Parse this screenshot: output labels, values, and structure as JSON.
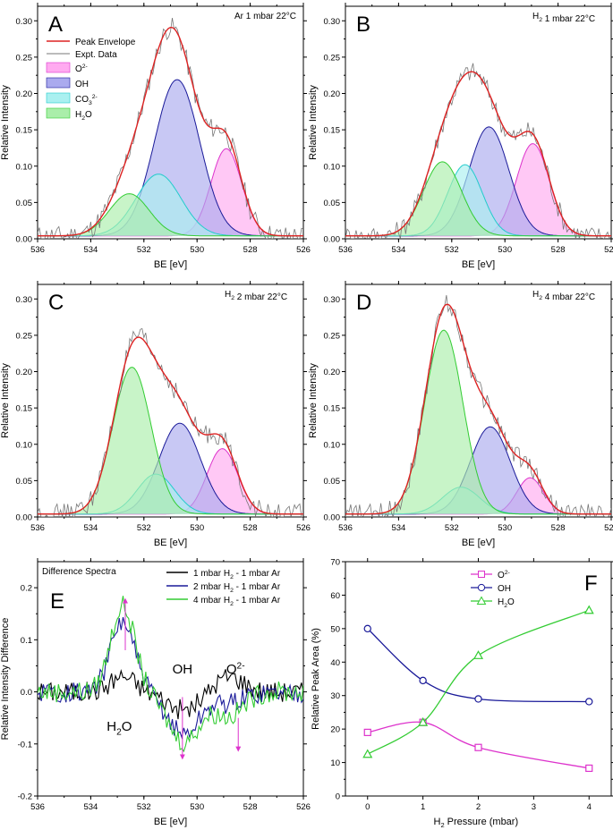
{
  "colors": {
    "envelope": "#dd2222",
    "expt": "#777777",
    "o2": "#dd33cc",
    "o2_fill": "#ffaaf0",
    "oh": "#1a1a99",
    "oh_fill": "#aaaaee",
    "co3": "#22cccc",
    "co3_fill": "#aaf0f0",
    "h2o": "#33cc33",
    "h2o_fill": "#aaeeaa",
    "diff1": "#000000",
    "diff2": "#1a1a99",
    "diff4": "#33cc33",
    "arrow": "#dd33cc"
  },
  "panels": [
    {
      "letter": "A",
      "condition": "Ar 1 mbar 22°C",
      "chart_data": {
        "type": "line",
        "title": "Ar 1 mbar 22°C",
        "xlabel": "BE [eV]",
        "ylabel": "Relative Intensity",
        "xlim": [
          536,
          526
        ],
        "ylim": [
          0,
          0.32
        ],
        "xticks": [
          "536",
          "534",
          "532",
          "530",
          "528",
          "526"
        ],
        "yticks": [
          "0.00",
          "0.05",
          "0.10",
          "0.15",
          "0.20",
          "0.25",
          "0.30"
        ],
        "components": [
          {
            "name": "O2-",
            "center": 528.9,
            "height": 0.12,
            "width": 0.58
          },
          {
            "name": "OH",
            "center": 530.75,
            "height": 0.215,
            "width": 0.85
          },
          {
            "name": "CO3 2-",
            "center": 531.45,
            "height": 0.085,
            "width": 0.85
          },
          {
            "name": "H2O",
            "center": 532.55,
            "height": 0.058,
            "width": 0.75
          }
        ],
        "baseline": 0.004
      }
    },
    {
      "letter": "B",
      "condition_prefix": "H",
      "condition_sub": "2",
      "condition_suffix": " 1 mbar 22°C",
      "chart_data": {
        "type": "line",
        "title": "H2 1 mbar 22°C",
        "xlabel": "BE [eV]",
        "ylabel": "Relative Intensity",
        "xlim": [
          536,
          526
        ],
        "ylim": [
          0,
          0.32
        ],
        "xticks": [
          "536",
          "534",
          "532",
          "530",
          "528",
          "526"
        ],
        "yticks": [
          "0.00",
          "0.05",
          "0.10",
          "0.15",
          "0.20",
          "0.25",
          "0.30"
        ],
        "components": [
          {
            "name": "O2-",
            "center": 528.95,
            "height": 0.127,
            "width": 0.62
          },
          {
            "name": "OH",
            "center": 530.6,
            "height": 0.15,
            "width": 0.75
          },
          {
            "name": "CO3 2-",
            "center": 531.5,
            "height": 0.098,
            "width": 0.65
          },
          {
            "name": "H2O",
            "center": 532.35,
            "height": 0.102,
            "width": 0.72
          }
        ],
        "baseline": 0.004
      }
    },
    {
      "letter": "C",
      "condition_prefix": "H",
      "condition_sub": "2",
      "condition_suffix": " 2 mbar 22°C",
      "chart_data": {
        "type": "line",
        "title": "H2 2 mbar 22°C",
        "xlabel": "BE [eV]",
        "ylabel": "Relative Intensity",
        "xlim": [
          536,
          526
        ],
        "ylim": [
          0,
          0.32
        ],
        "xticks": [
          "536",
          "534",
          "532",
          "530",
          "528",
          "526"
        ],
        "yticks": [
          "0.00",
          "0.05",
          "0.10",
          "0.15",
          "0.20",
          "0.25",
          "0.30"
        ],
        "components": [
          {
            "name": "O2-",
            "center": 529.05,
            "height": 0.09,
            "width": 0.58
          },
          {
            "name": "OH",
            "center": 530.65,
            "height": 0.125,
            "width": 0.78
          },
          {
            "name": "CO3 2-",
            "center": 531.55,
            "height": 0.055,
            "width": 0.7
          },
          {
            "name": "H2O",
            "center": 532.45,
            "height": 0.202,
            "width": 0.72
          }
        ],
        "baseline": 0.004
      }
    },
    {
      "letter": "D",
      "condition_prefix": "H",
      "condition_sub": "2",
      "condition_suffix": " 4 mbar 22°C",
      "chart_data": {
        "type": "line",
        "title": "H2 4 mbar 22°C",
        "xlabel": "BE [eV]",
        "ylabel": "Relative Intensity",
        "xlim": [
          536,
          526
        ],
        "ylim": [
          0,
          0.32
        ],
        "xticks": [
          "536",
          "534",
          "532",
          "530",
          "528",
          "526"
        ],
        "yticks": [
          "0.00",
          "0.05",
          "0.10",
          "0.15",
          "0.20",
          "0.25",
          "0.30"
        ],
        "components": [
          {
            "name": "O2-",
            "center": 529.05,
            "height": 0.05,
            "width": 0.5
          },
          {
            "name": "OH",
            "center": 530.55,
            "height": 0.12,
            "width": 0.75
          },
          {
            "name": "CO3 2-",
            "center": 531.65,
            "height": 0.037,
            "width": 0.7
          },
          {
            "name": "H2O",
            "center": 532.3,
            "height": 0.253,
            "width": 0.72
          }
        ],
        "baseline": 0.004
      }
    }
  ],
  "legend": {
    "envelope": "Peak Envelope",
    "expt": "Expt. Data",
    "o2_base": "O",
    "o2_sup": "2-",
    "oh": "OH",
    "co3_base": "CO",
    "co3_sub": "3",
    "co3_sup": "2-",
    "h2o_base": "H",
    "h2o_sub": "2",
    "h2o_end": "O"
  },
  "panel_e": {
    "letter": "E",
    "title": "Difference Spectra",
    "legend": [
      "1 mbar H2 - 1 mbar Ar",
      "2 mbar H2 - 1 mbar Ar",
      "4 mbar H2 - 1 mbar Ar"
    ],
    "legend_parts": [
      {
        "a": "1 mbar H",
        "b": "2",
        "c": " - 1 mbar Ar"
      },
      {
        "a": "2 mbar H",
        "b": "2",
        "c": " - 1 mbar Ar"
      },
      {
        "a": "4 mbar H",
        "b": "2",
        "c": " - 1 mbar Ar"
      }
    ],
    "annotations": {
      "h2o_a": "H",
      "h2o_b": "2",
      "h2o_c": "O",
      "oh": "OH",
      "o2_a": "O",
      "o2_b": "2-"
    },
    "chart_data": {
      "type": "line",
      "title": "Difference Spectra",
      "xlabel": "BE [eV]",
      "ylabel": "Relative Intensity Difference",
      "xlim": [
        536,
        526
      ],
      "ylim": [
        -0.2,
        0.25
      ],
      "xticks": [
        "536",
        "534",
        "532",
        "530",
        "528",
        "526"
      ],
      "yticks": [
        "-0.2",
        "-0.1",
        "0.0",
        "0.1",
        "0.2"
      ],
      "series": [
        {
          "name": "1 mbar H2 - 1 mbar Ar",
          "water_peak": 0.03,
          "oh_dip": -0.035,
          "o2_dip": 0.03
        },
        {
          "name": "2 mbar H2 - 1 mbar Ar",
          "water_peak": 0.135,
          "oh_dip": -0.08,
          "o2_dip": -0.02
        },
        {
          "name": "4 mbar H2 - 1 mbar Ar",
          "water_peak": 0.165,
          "oh_dip": -0.095,
          "o2_dip": -0.045
        }
      ]
    }
  },
  "panel_f": {
    "letter": "F",
    "legend_parts": [
      {
        "a": "O",
        "b": "2-",
        "kind": "sup"
      },
      {
        "a": "OH",
        "b": "",
        "kind": "none"
      },
      {
        "a": "H",
        "b": "2",
        "c": "O",
        "kind": "sub"
      }
    ],
    "xlabel_a": "H",
    "xlabel_b": "2",
    "xlabel_c": " Pressure (mbar)",
    "chart_data": {
      "type": "line",
      "xlabel": "H2 Pressure (mbar)",
      "ylabel": "Relative Peak Area (%)",
      "xlim": [
        -0.4,
        4.4
      ],
      "ylim": [
        0,
        70
      ],
      "xticks": [
        "0",
        "1",
        "2",
        "3",
        "4"
      ],
      "yticks": [
        "0",
        "10",
        "20",
        "30",
        "40",
        "50",
        "60",
        "70"
      ],
      "x": [
        0,
        1,
        2,
        4
      ],
      "series": [
        {
          "name": "O2-",
          "values": [
            19,
            22,
            14.5,
            8.3
          ]
        },
        {
          "name": "OH",
          "values": [
            50,
            34.5,
            29,
            28.2
          ]
        },
        {
          "name": "H2O",
          "values": [
            12.5,
            22,
            42,
            55.5
          ]
        }
      ]
    }
  }
}
